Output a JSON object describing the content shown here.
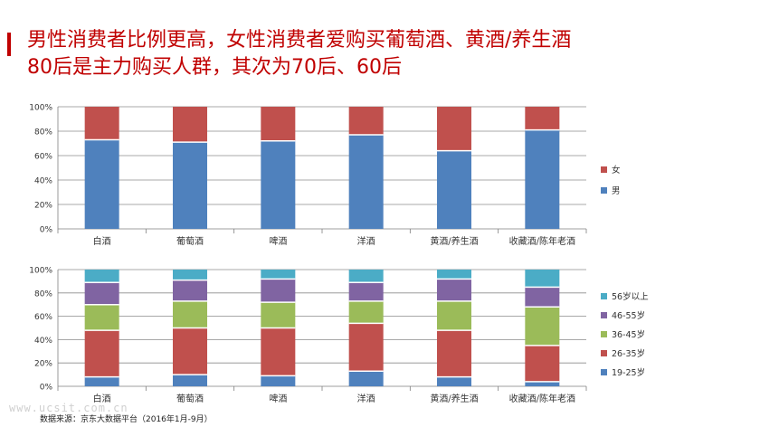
{
  "title": {
    "line1": "男性消费者比例更高，女性消费者爱购买葡萄酒、黄酒/养生酒",
    "line2": "80后是主力购买人群，其次为70后、60后"
  },
  "colors": {
    "accent": "#c00000",
    "male": "#4f81bd",
    "female": "#c0504d",
    "age_19_25": "#4f81bd",
    "age_26_35": "#c0504d",
    "age_36_45": "#9bbb59",
    "age_46_55": "#8064a2",
    "age_56_plus": "#4bacc6"
  },
  "watermark": "www.ucsit.com.cn",
  "source": "数据来源：京东大数据平台（2016年1月-9月）",
  "chart_data": [
    {
      "type": "bar",
      "stacked": "percent",
      "categories": [
        "白酒",
        "葡萄酒",
        "啤酒",
        "洋酒",
        "黄酒/养生酒",
        "收藏酒/陈年老酒"
      ],
      "yticks": [
        "0%",
        "20%",
        "40%",
        "60%",
        "80%",
        "100%"
      ],
      "ylim": [
        0,
        100
      ],
      "grid": true,
      "legend": "right",
      "series": [
        {
          "name": "男",
          "color": "#4f81bd",
          "values": [
            73,
            71,
            72,
            77,
            64,
            81
          ]
        },
        {
          "name": "女",
          "color": "#c0504d",
          "values": [
            27,
            29,
            28,
            23,
            36,
            19
          ]
        }
      ]
    },
    {
      "type": "bar",
      "stacked": "percent",
      "categories": [
        "白酒",
        "葡萄酒",
        "啤酒",
        "洋酒",
        "黄酒/养生酒",
        "收藏酒/陈年老酒"
      ],
      "yticks": [
        "0%",
        "20%",
        "40%",
        "60%",
        "80%",
        "100%"
      ],
      "ylim": [
        0,
        100
      ],
      "grid": true,
      "legend": "right",
      "series": [
        {
          "name": "19-25岁",
          "color": "#4f81bd",
          "values": [
            8,
            10,
            9,
            13,
            8,
            4
          ]
        },
        {
          "name": "26-35岁",
          "color": "#c0504d",
          "values": [
            40,
            40,
            41,
            41,
            40,
            31
          ]
        },
        {
          "name": "36-45岁",
          "color": "#9bbb59",
          "values": [
            22,
            23,
            22,
            19,
            25,
            33
          ]
        },
        {
          "name": "46-55岁",
          "color": "#8064a2",
          "values": [
            19,
            18,
            20,
            16,
            19,
            17
          ]
        },
        {
          "name": "56岁以上",
          "color": "#4bacc6",
          "values": [
            11,
            9,
            8,
            11,
            8,
            15
          ]
        }
      ]
    }
  ]
}
